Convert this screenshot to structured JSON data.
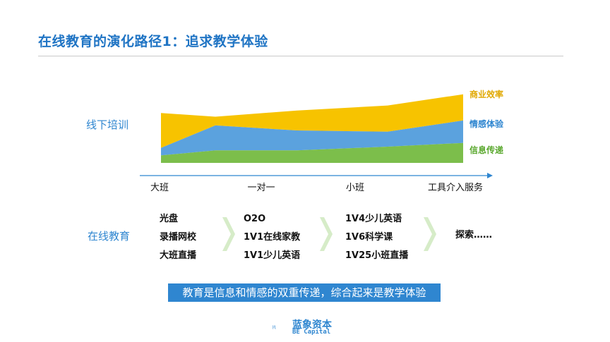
{
  "header": {
    "title": "在线教育的演化路径1：追求教学体验"
  },
  "left_labels": {
    "offline": "线下培训",
    "online": "在线教育"
  },
  "online_columns": [
    {
      "items": [
        "光盘",
        "录播网校",
        "大班直播"
      ]
    },
    {
      "items": [
        "O2O",
        "1V1在线家教",
        "1V1少儿英语"
      ]
    },
    {
      "items": [
        "1V4少儿英语",
        "1V6科学课",
        "1V25小班直播"
      ]
    },
    {
      "items": [
        "探索……"
      ]
    }
  ],
  "summary": "教育是信息和情感的双重传递，综合起来是教学体验",
  "logo": {
    "name": "蓝象资本",
    "sub": "BE Capital"
  },
  "colors": {
    "accent": "#2f86d0",
    "yellow": "#f7c300",
    "blue": "#5ba2de",
    "green": "#7cbe4b"
  },
  "chart_data": {
    "type": "area",
    "stacked": true,
    "categories": [
      "大班",
      "一对一",
      "小班",
      "工具介入服务"
    ],
    "x": [
      0,
      0.18,
      0.45,
      0.75,
      1.0
    ],
    "series": [
      {
        "name": "信息传递",
        "color": "#7cbe4b",
        "values": [
          0.12,
          0.2,
          0.2,
          0.26,
          0.32
        ]
      },
      {
        "name": "情感体验",
        "color": "#5ba2de",
        "values": [
          0.12,
          0.4,
          0.32,
          0.24,
          0.36
        ]
      },
      {
        "name": "商业效率",
        "color": "#f7c300",
        "values": [
          0.56,
          0.14,
          0.32,
          0.42,
          0.42
        ]
      }
    ],
    "ylim": [
      0,
      1.3
    ],
    "grid": false,
    "legend": "right"
  }
}
